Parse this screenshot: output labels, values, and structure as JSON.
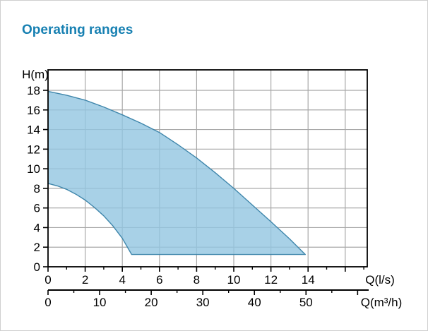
{
  "header": {
    "title": "Operating ranges"
  },
  "chart_data": {
    "type": "area",
    "title": "Operating ranges",
    "grid": true,
    "legend": "none",
    "y_axis": {
      "label": "H(m)",
      "unit": "m",
      "range": [
        0,
        20
      ],
      "labeled_ticks": [
        0,
        2,
        4,
        6,
        8,
        10,
        12,
        14,
        16,
        18
      ],
      "grid_values": [
        2,
        4,
        6,
        8,
        10,
        12,
        14,
        16,
        18
      ]
    },
    "x_axis_primary": {
      "label": "Q(l/s)",
      "unit": "l/s",
      "range": [
        0,
        17.2
      ],
      "labeled_ticks": [
        0,
        2,
        4,
        6,
        8,
        10,
        12,
        14
      ],
      "major_ticks": [
        0,
        2,
        4,
        6,
        8,
        10,
        12,
        14,
        16
      ],
      "minor_ticks": [
        1,
        3,
        5,
        7,
        9,
        11,
        13,
        15,
        17
      ],
      "grid_values": [
        2,
        4,
        6,
        8,
        10,
        12,
        14,
        16
      ]
    },
    "x_axis_secondary": {
      "label": "Q(m³/h)",
      "unit": "m³/h",
      "range": [
        0,
        62
      ],
      "labeled_ticks": [
        0,
        10,
        20,
        30,
        40,
        50
      ],
      "major_ticks": [
        0,
        10,
        20,
        30,
        40,
        50,
        60
      ],
      "minor_ticks": [
        5,
        15,
        25,
        35,
        45,
        55
      ],
      "ls_to_m3h_factor": 3.6
    },
    "series": [
      {
        "name": "operating-range-envelope",
        "upper_boundary_q_h": [
          [
            0,
            17.9
          ],
          [
            1,
            17.5
          ],
          [
            2,
            17.0
          ],
          [
            3,
            16.3
          ],
          [
            4,
            15.5
          ],
          [
            5,
            14.65
          ],
          [
            6,
            13.7
          ],
          [
            7,
            12.45
          ],
          [
            8,
            11.1
          ],
          [
            9,
            9.6
          ],
          [
            10,
            8.0
          ],
          [
            11,
            6.3
          ],
          [
            12,
            4.6
          ],
          [
            13,
            2.85
          ],
          [
            13.85,
            1.25
          ]
        ],
        "lower_boundary_q_h": [
          [
            0,
            8.5
          ],
          [
            0.5,
            8.25
          ],
          [
            1,
            7.9
          ],
          [
            1.5,
            7.4
          ],
          [
            2,
            6.8
          ],
          [
            2.5,
            6.05
          ],
          [
            3,
            5.2
          ],
          [
            3.5,
            4.15
          ],
          [
            4,
            2.9
          ],
          [
            4.5,
            1.25
          ]
        ],
        "min_head_m": 1.25,
        "max_flow_ls": 13.85
      }
    ],
    "colors": {
      "region_fill": "#92c6e1",
      "region_stroke": "#3f86ab",
      "grid": "#a8a8a8",
      "axis": "#000000",
      "title": "#1780b2",
      "background": "#ffffff",
      "page_border": "#cfcfcf"
    }
  }
}
